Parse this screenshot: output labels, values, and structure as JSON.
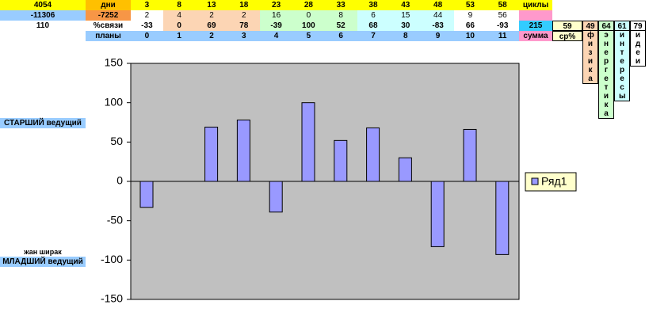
{
  "sheet": {
    "row1": {
      "a": "4054",
      "b": "дни",
      "cells": [
        3,
        8,
        13,
        18,
        23,
        28,
        33,
        38,
        43,
        48,
        53,
        58
      ],
      "end": "циклы"
    },
    "row2": {
      "a": "-11306",
      "b": "-7252",
      "cells": [
        2,
        4,
        2,
        2,
        16,
        0,
        8,
        6,
        15,
        44,
        9,
        56
      ]
    },
    "row3": {
      "a": "110",
      "b": "%связи",
      "sum": "215",
      "avg": "59"
    },
    "row4": {
      "b": "планы",
      "cells": [
        0,
        1,
        2,
        3,
        4,
        5,
        6,
        7,
        8,
        9,
        10,
        11
      ],
      "sum": "сумма",
      "avg": "ср%"
    },
    "side": [
      {
        "value": "49",
        "word": "физика"
      },
      {
        "value": "64",
        "word": "энергетика"
      },
      {
        "value": "61",
        "word": "интересы"
      },
      {
        "value": "79",
        "word": "идеи"
      }
    ],
    "labels": {
      "senior": "СТАРШИЙ ведущий",
      "name": "жан ширак",
      "junior": "МЛАДШИЙ ведущий"
    }
  },
  "chart_data": {
    "type": "bar",
    "series": [
      {
        "name": "Ряд1",
        "color": "#9999ff",
        "values": [
          -33,
          0,
          69,
          78,
          -39,
          100,
          52,
          68,
          30,
          -83,
          66,
          -93
        ]
      }
    ],
    "ylim": [
      -150,
      150
    ],
    "yticks": [
      -150,
      -100,
      -50,
      0,
      50,
      100,
      150
    ],
    "plot_background": "#c0c0c0",
    "legend": "right"
  }
}
